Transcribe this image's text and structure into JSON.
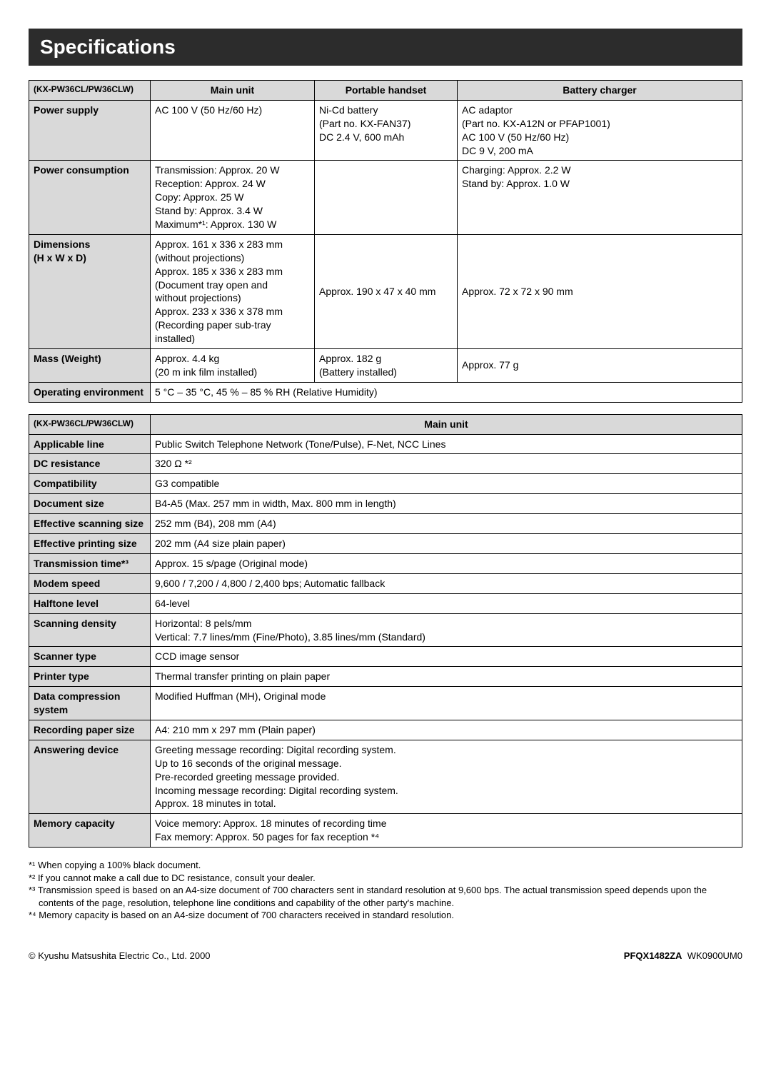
{
  "title": "Specifications",
  "t1": {
    "model": "(KX-PW36CL/PW36CLW)",
    "hdr_main": "Main unit",
    "hdr_port": "Portable handset",
    "hdr_batt": "Battery charger",
    "rows": {
      "power_supply": {
        "label": "Power supply",
        "main": "AC 100 V (50 Hz/60 Hz)",
        "port": "Ni-Cd battery\n(Part no. KX-FAN37)\nDC 2.4 V, 600 mAh",
        "batt": "AC adaptor\n(Part no. KX-A12N or PFAP1001)\nAC 100 V (50 Hz/60 Hz)\nDC 9 V, 200 mA"
      },
      "power_consumption": {
        "label": "Power consumption",
        "main": "Transmission:  Approx.   20 W\nReception:        Approx.   24 W\nCopy:                Approx.   25 W\nStand by:          Approx.  3.4 W\nMaximum*¹:      Approx. 130 W",
        "port": "",
        "batt": "Charging: Approx. 2.2 W\nStand by: Approx. 1.0 W"
      },
      "dimensions": {
        "label": "Dimensions\n(H x W x D)",
        "main": "Approx. 161 x 336 x 283 mm\n  (without projections)\nApprox. 185 x 336 x 283 mm\n  (Document tray open and\n  without projections)\nApprox. 233 x 336 x 378 mm\n  (Recording paper sub-tray\n  installed)",
        "port": "Approx. 190 x 47 x 40 mm",
        "batt": "Approx. 72 x 72 x 90 mm"
      },
      "mass": {
        "label": "Mass (Weight)",
        "main": "Approx. 4.4 kg\n(20 m ink film installed)",
        "port": "Approx. 182 g\n(Battery installed)",
        "batt": "Approx. 77 g"
      },
      "env": {
        "label": "Operating environment",
        "value": "5 °C – 35 °C, 45 % – 85 % RH (Relative Humidity)"
      }
    }
  },
  "t2": {
    "model": "(KX-PW36CL/PW36CLW)",
    "hdr_main": "Main unit",
    "rows": [
      {
        "label": "Applicable line",
        "value": "Public Switch Telephone Network (Tone/Pulse), F-Net, NCC Lines"
      },
      {
        "label": "DC resistance",
        "value": "320 Ω *²"
      },
      {
        "label": "Compatibility",
        "value": "G3 compatible"
      },
      {
        "label": "Document size",
        "value": "B4-A5 (Max. 257 mm in width, Max. 800 mm in length)"
      },
      {
        "label": "Effective scanning size",
        "value": "252 mm (B4), 208 mm (A4)"
      },
      {
        "label": "Effective printing size",
        "value": "202 mm (A4 size plain paper)"
      },
      {
        "label": "Transmission time*³",
        "value": "Approx. 15 s/page (Original mode)"
      },
      {
        "label": "Modem speed",
        "value": "9,600 / 7,200 / 4,800 / 2,400 bps; Automatic fallback"
      },
      {
        "label": "Halftone level",
        "value": "64-level"
      },
      {
        "label": "Scanning density",
        "value": "Horizontal: 8 pels/mm\nVertical:     7.7 lines/mm (Fine/Photo), 3.85 lines/mm (Standard)"
      },
      {
        "label": "Scanner type",
        "value": "CCD image sensor"
      },
      {
        "label": "Printer type",
        "value": "Thermal transfer printing on plain paper"
      },
      {
        "label": "Data compression system",
        "value": "Modified Huffman (MH), Original mode"
      },
      {
        "label": "Recording paper size",
        "value": "A4: 210 mm x 297 mm (Plain paper)"
      },
      {
        "label": "Answering device",
        "value": "Greeting message recording:  Digital recording system.\n                                                 Up to 16 seconds of the original message.\n                                                 Pre-recorded greeting message provided.\nIncoming message recording: Digital recording system.\n                                                 Approx. 18 minutes in total."
      },
      {
        "label": "Memory capacity",
        "value": "Voice memory: Approx. 18 minutes of recording time\nFax memory:    Approx. 50 pages for fax reception *⁴"
      }
    ]
  },
  "footnotes": [
    "*¹ When copying a 100% black document.",
    "*² If you cannot make a call due to DC resistance, consult your dealer.",
    "*³ Transmission speed is based on an A4-size document of 700 characters sent in standard resolution at 9,600 bps. The actual transmission speed depends upon the contents of the page, resolution, telephone line conditions and capability of the other party's machine.",
    "*⁴ Memory capacity is based on an A4-size document of 700 characters received in standard resolution."
  ],
  "footer": {
    "left": "© Kyushu Matsushita Electric Co., Ltd. 2000",
    "right_code": "PFQX1482ZA",
    "right_suffix": "WK0900UM0"
  }
}
